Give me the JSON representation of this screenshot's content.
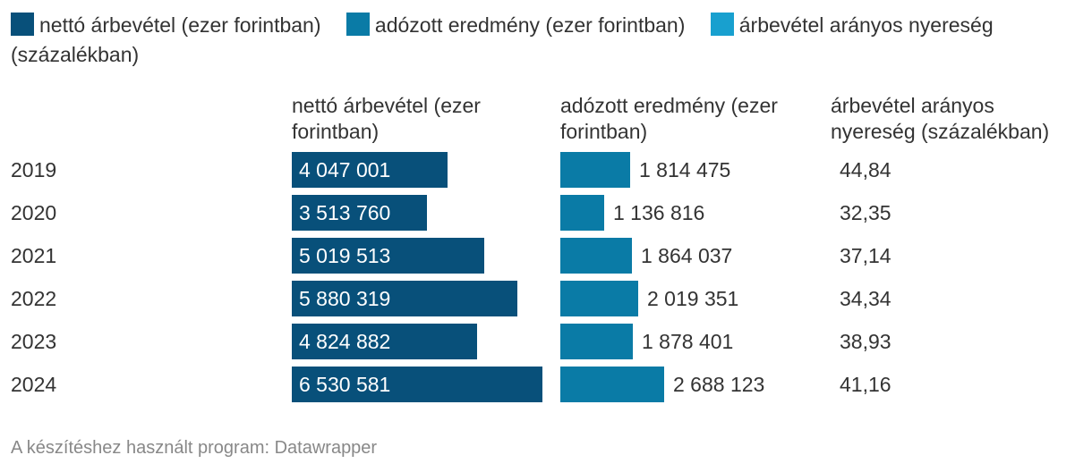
{
  "legend": [
    {
      "label": "nettó árbevétel (ezer forintban)",
      "color": "#08507a"
    },
    {
      "label": "adózott eredmény (ezer forintban)",
      "color": "#0a7ba6"
    },
    {
      "label": "árbevétel arányos nyereség (százalékban)",
      "color": "#18a0cf"
    }
  ],
  "columns": {
    "col1": "nettó árbevétel (ezer forintban)",
    "col2": "adózott eredmény (ezer forintban)",
    "col3": "árbevétel arányos nyereség (százalékban)"
  },
  "chart_data": {
    "type": "bar",
    "categories": [
      "2019",
      "2020",
      "2021",
      "2022",
      "2023",
      "2024"
    ],
    "series": [
      {
        "name": "nettó árbevétel (ezer forintban)",
        "values": [
          4047001,
          3513760,
          5019513,
          5880319,
          4824882,
          6530581
        ],
        "labels": [
          "4 047 001",
          "3 513 760",
          "5 019 513",
          "5 880 319",
          "4 824 882",
          "6 530 581"
        ],
        "color": "#08507a"
      },
      {
        "name": "adózott eredmény (ezer forintban)",
        "values": [
          1814475,
          1136816,
          1864037,
          2019351,
          1878401,
          2688123
        ],
        "labels": [
          "1 814 475",
          "1 136 816",
          "1 864 037",
          "2 019 351",
          "1 878 401",
          "2 688 123"
        ],
        "color": "#0a7ba6"
      },
      {
        "name": "árbevétel arányos nyereség (százalékban)",
        "values": [
          44.84,
          32.35,
          37.14,
          34.34,
          38.93,
          41.16
        ],
        "labels": [
          "44,84",
          "32,35",
          "37,14",
          "34,34",
          "38,93",
          "41,16"
        ],
        "color": "#18a0cf"
      }
    ]
  },
  "footer": "A készítéshez használt program: Datawrapper"
}
